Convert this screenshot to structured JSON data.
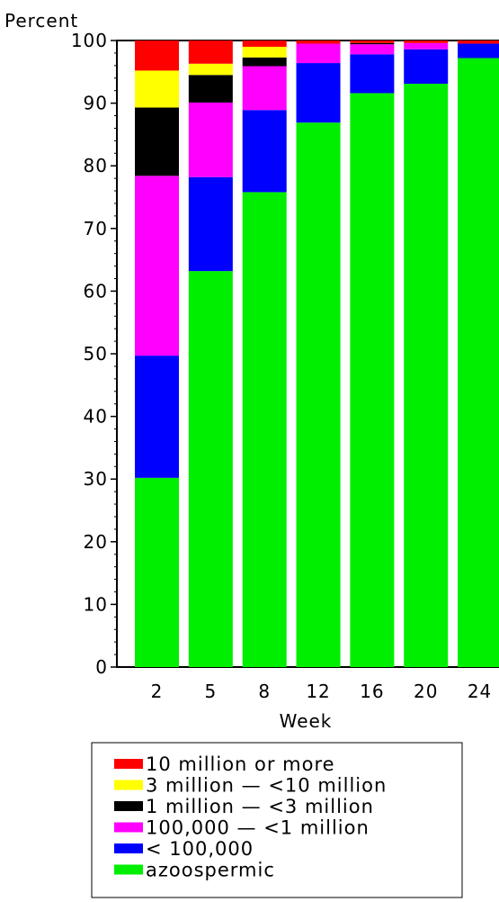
{
  "chart_data": {
    "type": "bar",
    "stacked": true,
    "ylabel": "Percent",
    "xlabel": "Week",
    "categories": [
      "2",
      "5",
      "8",
      "12",
      "16",
      "20",
      "24"
    ],
    "ylim": [
      0,
      100
    ],
    "yticks": [
      0,
      10,
      20,
      30,
      40,
      50,
      60,
      70,
      80,
      90,
      100
    ],
    "series": [
      {
        "name": "azoospermic",
        "color": "#00ee00",
        "values": [
          30.2,
          63.2,
          75.8,
          86.9,
          91.6,
          93.1,
          97.2
        ]
      },
      {
        "name": "< 100,000",
        "color": "#0000ff",
        "values": [
          19.5,
          15.0,
          13.1,
          9.5,
          6.2,
          5.5,
          2.3
        ]
      },
      {
        "name": "100,000 — <1 million",
        "color": "#ff00ff",
        "values": [
          28.7,
          11.9,
          7.0,
          3.1,
          1.6,
          1.0,
          0.0
        ]
      },
      {
        "name": "1 million — <3 million",
        "color": "#000000",
        "values": [
          10.9,
          4.4,
          1.4,
          0.0,
          0.2,
          0.0,
          0.0
        ]
      },
      {
        "name": "3 million — <10 million",
        "color": "#ffff00",
        "values": [
          5.9,
          1.8,
          1.7,
          0.0,
          0.0,
          0.0,
          0.0
        ]
      },
      {
        "name": "10 million or more",
        "color": "#ff0000",
        "values": [
          4.8,
          3.7,
          1.0,
          0.5,
          0.4,
          0.4,
          0.5
        ]
      }
    ],
    "legend": {
      "placement": "bottom",
      "order": [
        "10 million or more",
        "3 million — <10 million",
        "1 million — <3 million",
        "100,000 — <1 million",
        "< 100,000",
        "azoospermic"
      ]
    }
  }
}
